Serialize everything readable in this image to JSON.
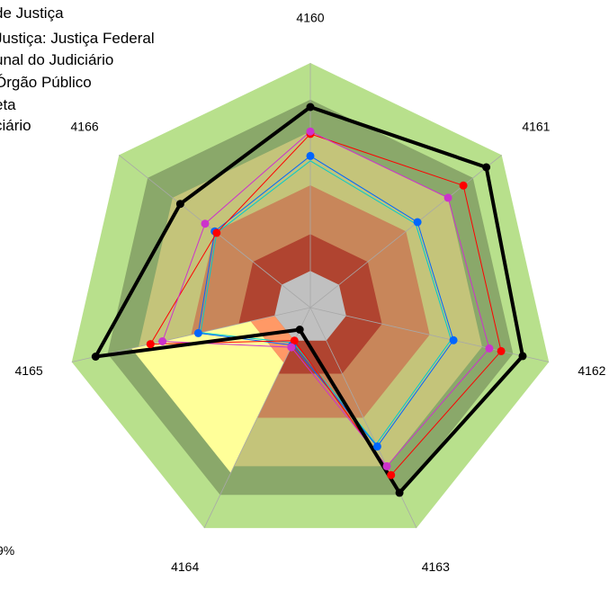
{
  "chart_data": {
    "type": "radar",
    "categories": [
      "4160",
      "4161",
      "4162",
      "4163",
      "4164",
      "4165",
      "4166"
    ],
    "scale_max": 100,
    "bands": [
      {
        "color": "#b8e08c",
        "to": 100
      },
      {
        "color": "#8aa86a",
        "to": 85
      },
      {
        "color": "#c4c47a",
        "to": 72
      },
      {
        "color": "#c8865a",
        "to": 50
      },
      {
        "color": "#b04430",
        "to": 30
      },
      {
        "color": "#c0c0c0",
        "to": 15
      }
    ],
    "region_overlay": {
      "outer": 75,
      "inner": 25,
      "outer_color": "#ffff99",
      "inner_color": "#ff9966"
    },
    "series": [
      {
        "color": "#000000",
        "values": [
          82,
          92,
          89,
          84,
          10,
          90,
          68
        ]
      },
      {
        "color": "#cc33cc",
        "values": [
          72,
          72,
          75,
          72,
          18,
          62,
          55
        ]
      },
      {
        "color": "#ff0000",
        "values": [
          71,
          80,
          80,
          76,
          15,
          67,
          49
        ]
      },
      {
        "color": "#0066ff",
        "values": [
          62,
          56,
          60,
          63,
          17,
          47,
          50
        ]
      },
      {
        "color": "#00cccc",
        "values": [
          60,
          55,
          59,
          62,
          16,
          46,
          49
        ]
      }
    ]
  },
  "legend": [
    "de Justiça",
    "Justiça: Justiça Federal",
    "unal do Judiciário",
    "Órgão Público",
    "eta",
    "ciário"
  ],
  "footer": "9%"
}
